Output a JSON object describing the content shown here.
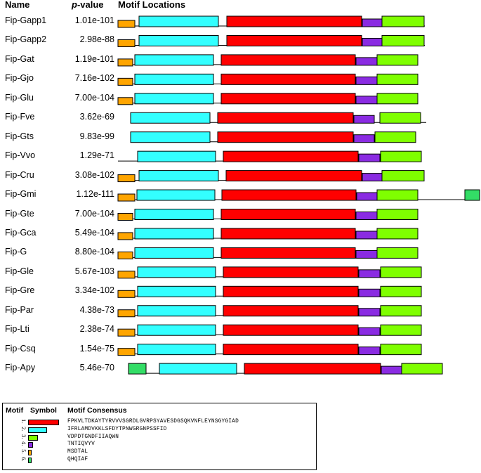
{
  "header": {
    "name_label": "Name",
    "pvalue_label": "p",
    "pvalue_suffix": "-value",
    "motif_locations_label": "Motif Locations"
  },
  "colors": {
    "motif1": "#ff0000",
    "motif2": "#33ffff",
    "motif3": "#7fff00",
    "motif4": "#8a2be2",
    "motif5": "#ffa500",
    "motif6": "#33dd66"
  },
  "scale_note": "residue positions approximated from blocks",
  "rows": [
    {
      "name": "Fip-Gapp1",
      "pvalue": "1.01e-101"
    },
    {
      "name": "Fip-Gapp2",
      "pvalue": "2.98e-88"
    },
    {
      "name": "Fip-Gat",
      "pvalue": "1.19e-101"
    },
    {
      "name": "Fip-Gjo",
      "pvalue": "7.16e-102"
    },
    {
      "name": "Fip-Glu",
      "pvalue": "7.00e-104"
    },
    {
      "name": "Fip-Fve",
      "pvalue": "3.62e-69"
    },
    {
      "name": "Fip-Gts",
      "pvalue": "9.83e-99"
    },
    {
      "name": "Fip-Vvo",
      "pvalue": "1.29e-71"
    },
    {
      "name": "Fip-Cru",
      "pvalue": "3.08e-102"
    },
    {
      "name": "Fip-Gmi",
      "pvalue": "1.12e-111"
    },
    {
      "name": "Fip-Gte",
      "pvalue": "7.00e-104"
    },
    {
      "name": "Fip-Gca",
      "pvalue": "5.49e-104"
    },
    {
      "name": "Fip-G",
      "pvalue": "8.80e-104"
    },
    {
      "name": "Fip-Gle",
      "pvalue": "5.67e-103"
    },
    {
      "name": "Fip-Gre",
      "pvalue": "3.34e-102"
    },
    {
      "name": "Fip-Par",
      "pvalue": "4.38e-73"
    },
    {
      "name": "Fip-Lti",
      "pvalue": "2.38e-74"
    },
    {
      "name": "Fip-Csq",
      "pvalue": "1.54e-75"
    },
    {
      "name": "Fip-Apy",
      "pvalue": "5.46e-70"
    }
  ],
  "legend": {
    "motif_label": "Motif",
    "symbol_label": "Symbol",
    "consensus_label": "Motif Consensus",
    "motifs": [
      {
        "num": "1.",
        "color": "#ff0000",
        "consensus": "FPKVLTDKAYTYRVVVSGRDLGVRPSYAVESDGSQKVNFLEYNSGYGIAD"
      },
      {
        "num": "2.",
        "color": "#33ffff",
        "consensus": "IFRLAMDVKKLSFDYTPNWGRGNPSSFID"
      },
      {
        "num": "3.",
        "color": "#7fff00",
        "consensus": "VDPDTGNDFIIAQWN"
      },
      {
        "num": "4.",
        "color": "#8a2be2",
        "consensus": "TNTIQVYV"
      },
      {
        "num": "5.",
        "color": "#ffa500",
        "consensus": "MSDTAL"
      },
      {
        "num": "6.",
        "color": "#33dd66",
        "consensus": "QHQIAF"
      }
    ]
  }
}
